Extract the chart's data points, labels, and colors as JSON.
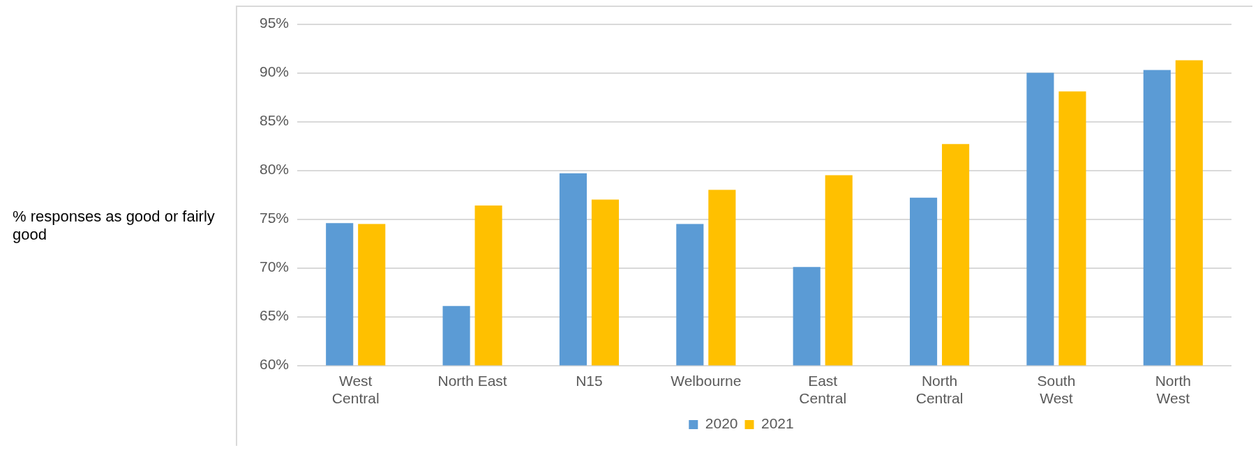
{
  "chart_data": {
    "type": "bar",
    "ylabel": "%  responses as good or fairly good",
    "categories": [
      "West\nCentral",
      "North East",
      "N15",
      "Welbourne",
      "East\nCentral",
      "North\nCentral",
      "South\nWest",
      "North\nWest"
    ],
    "series": [
      {
        "name": "2020",
        "color": "#5b9bd5",
        "values": [
          74.6,
          66.1,
          79.7,
          74.5,
          70.1,
          77.2,
          90.0,
          90.3
        ]
      },
      {
        "name": "2021",
        "color": "#ffc000",
        "values": [
          74.5,
          76.4,
          77.0,
          78.0,
          79.5,
          82.7,
          88.1,
          91.3
        ]
      }
    ],
    "ylim": [
      60,
      95
    ],
    "yticks": [
      {
        "value": 60,
        "label": "60%"
      },
      {
        "value": 65,
        "label": "65%"
      },
      {
        "value": 70,
        "label": "70%"
      },
      {
        "value": 75,
        "label": "75%"
      },
      {
        "value": 80,
        "label": "80%"
      },
      {
        "value": 85,
        "label": "85%"
      },
      {
        "value": 90,
        "label": "90%"
      },
      {
        "value": 95,
        "label": "95%"
      }
    ],
    "grid": "y",
    "legend": "bottom"
  }
}
